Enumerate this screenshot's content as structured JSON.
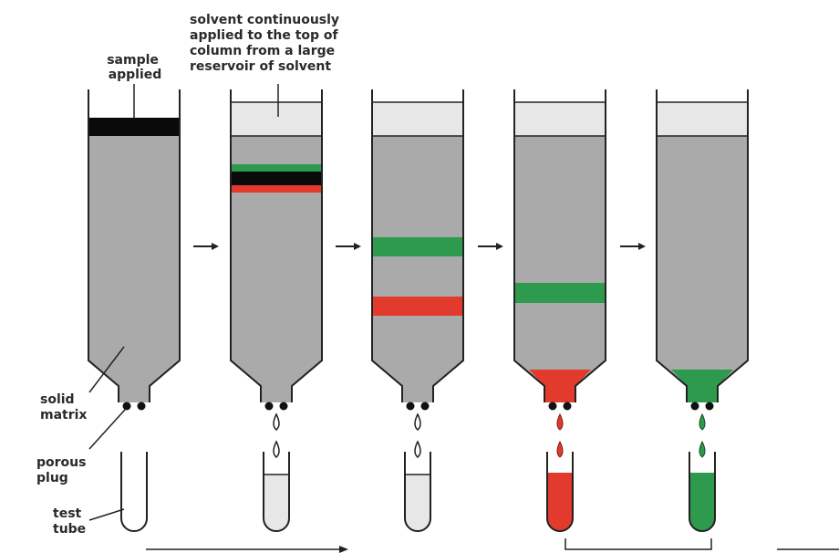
{
  "labels": {
    "sample_applied": [
      "sample",
      "applied"
    ],
    "solvent_note": [
      "solvent continuously",
      "applied to the top of",
      "column from a large",
      "reservoir of solvent"
    ],
    "solid_matrix": [
      "solid",
      "matrix"
    ],
    "porous_plug": [
      "porous",
      "plug"
    ],
    "test_tube": [
      "test",
      "tube"
    ]
  },
  "colors": {
    "matrix": "#a9aaa9",
    "solvent": "#e6e7e6",
    "sample": "#0a0a0a",
    "green_band": "#2e9a4e",
    "red_band": "#e23a2d",
    "outline": "#222222"
  },
  "columns": [
    {
      "state": "sample-applied",
      "reservoir": "sample",
      "bands": [],
      "outlet": "none",
      "drops": "none",
      "tube": "empty"
    },
    {
      "state": "bands-at-top",
      "reservoir": "solvent",
      "bands": [
        "black",
        "red"
      ],
      "outlet": "none",
      "drops": "clear",
      "tube": "clear"
    },
    {
      "state": "bands-separated",
      "reservoir": "solvent",
      "bands": [
        "green",
        "red"
      ],
      "outlet": "none",
      "drops": "clear",
      "tube": "clear"
    },
    {
      "state": "red-eluting",
      "reservoir": "solvent",
      "bands": [
        "green"
      ],
      "outlet": "red",
      "drops": "red",
      "tube": "red"
    },
    {
      "state": "green-eluting",
      "reservoir": "solvent",
      "bands": [],
      "outlet": "green",
      "drops": "green",
      "tube": "green"
    }
  ]
}
